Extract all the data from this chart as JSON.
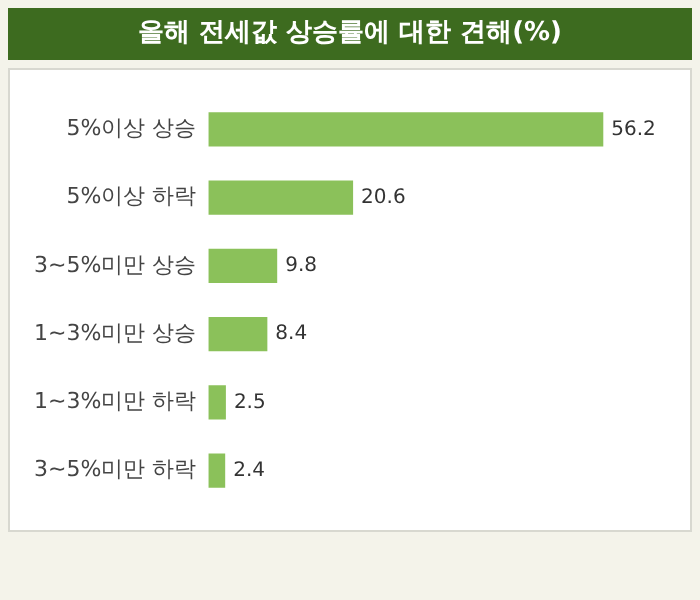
{
  "chart_data": {
    "type": "bar",
    "orientation": "horizontal",
    "title": "올해 전세값 상승률에 대한 견해(%)",
    "categories": [
      "5%이상 상승",
      "5%이상 하락",
      "3~5%미만 상승",
      "1~3%미만 상승",
      "1~3%미만 하락",
      "3~5%미만 하락"
    ],
    "values": [
      56.2,
      20.6,
      9.8,
      8.4,
      2.5,
      2.4
    ],
    "color": "#8bc15a",
    "data_labels": true,
    "grid": false,
    "legend": false
  }
}
